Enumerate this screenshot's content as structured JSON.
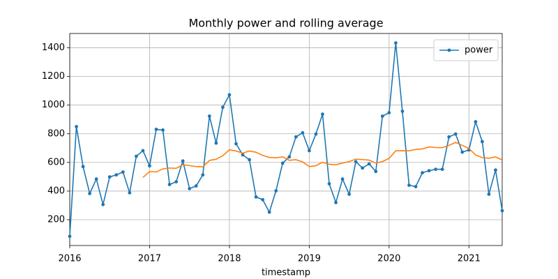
{
  "chart_data": {
    "type": "line",
    "title": "Monthly power and rolling average",
    "xlabel": "timestamp",
    "x": [
      "2016-01",
      "2016-02",
      "2016-03",
      "2016-04",
      "2016-05",
      "2016-06",
      "2016-07",
      "2016-08",
      "2016-09",
      "2016-10",
      "2016-11",
      "2016-12",
      "2017-01",
      "2017-02",
      "2017-03",
      "2017-04",
      "2017-05",
      "2017-06",
      "2017-07",
      "2017-08",
      "2017-09",
      "2017-10",
      "2017-11",
      "2017-12",
      "2018-01",
      "2018-02",
      "2018-03",
      "2018-04",
      "2018-05",
      "2018-06",
      "2018-07",
      "2018-08",
      "2018-09",
      "2018-10",
      "2018-11",
      "2018-12",
      "2019-01",
      "2019-02",
      "2019-03",
      "2019-04",
      "2019-05",
      "2019-06",
      "2019-07",
      "2019-08",
      "2019-09",
      "2019-10",
      "2019-11",
      "2019-12",
      "2020-01",
      "2020-02",
      "2020-03",
      "2020-04",
      "2020-05",
      "2020-06",
      "2020-07",
      "2020-08",
      "2020-09",
      "2020-10",
      "2020-11",
      "2020-12",
      "2021-01",
      "2021-02",
      "2021-03",
      "2021-04",
      "2021-05",
      "2021-06"
    ],
    "series": [
      {
        "name": "power",
        "color": "#1f77b4",
        "markers": true,
        "values": [
          84,
          850,
          571,
          383,
          484,
          306,
          499,
          513,
          533,
          388,
          643,
          682,
          576,
          831,
          826,
          446,
          465,
          610,
          417,
          436,
          513,
          923,
          735,
          985,
          1072,
          730,
          653,
          619,
          359,
          340,
          253,
          402,
          595,
          639,
          778,
          807,
          682,
          798,
          937,
          451,
          320,
          484,
          378,
          605,
          561,
          590,
          537,
          923,
          947,
          1434,
          957,
          441,
          431,
          528,
          542,
          552,
          552,
          778,
          798,
          672,
          687,
          884,
          745,
          378,
          547,
          263
        ]
      },
      {
        "color": "#ff7f0e",
        "markers": false,
        "values": [
          null,
          null,
          null,
          null,
          null,
          null,
          null,
          null,
          null,
          null,
          null,
          495,
          536,
          534,
          555,
          561,
          559,
          584,
          578,
          571,
          569,
          614,
          622,
          647,
          688,
          680,
          665,
          680,
          671,
          649,
          635,
          632,
          639,
          615,
          619,
          604,
          571,
          577,
          601,
          587,
          584,
          596,
          606,
          623,
          620,
          616,
          596,
          606,
          628,
          681,
          682,
          681,
          691,
          694,
          708,
          704,
          703,
          719,
          740,
          719,
          698,
          652,
          634,
          629,
          639,
          617
        ]
      }
    ],
    "xlim": [
      "2016-01",
      "2021-06"
    ],
    "xticks": [
      2016,
      2017,
      2018,
      2019,
      2020,
      2021
    ],
    "ylim": [
      20,
      1500
    ],
    "yticks": [
      200,
      400,
      600,
      800,
      1000,
      1200,
      1400
    ],
    "grid": true,
    "legend": "upper right"
  }
}
